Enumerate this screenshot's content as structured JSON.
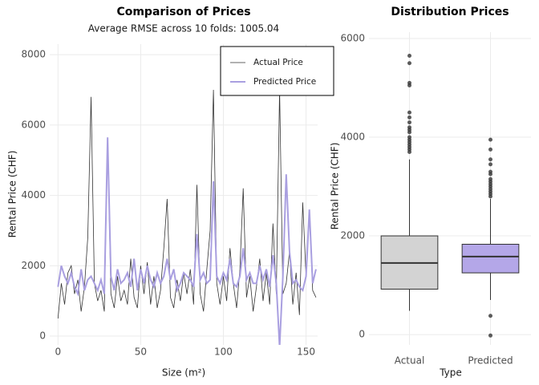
{
  "chart_data": [
    {
      "type": "line",
      "title": "Comparison of Prices",
      "subtitle": "Average RMSE across 10 folds: 1005.04",
      "x_label": "Size (m²)",
      "y_label": "Rental Price (CHF)",
      "x": [
        0,
        2,
        4,
        6,
        8,
        10,
        12,
        14,
        16,
        18,
        20,
        22,
        24,
        26,
        28,
        30,
        32,
        34,
        36,
        38,
        40,
        42,
        44,
        46,
        48,
        50,
        52,
        54,
        56,
        58,
        60,
        62,
        64,
        66,
        68,
        70,
        72,
        74,
        76,
        78,
        80,
        82,
        84,
        86,
        88,
        90,
        92,
        94,
        96,
        98,
        100,
        102,
        104,
        106,
        108,
        110,
        112,
        114,
        116,
        118,
        120,
        122,
        124,
        126,
        128,
        130,
        132,
        134,
        136,
        138,
        140,
        142,
        144,
        146,
        148,
        150,
        152,
        154,
        156
      ],
      "series": [
        {
          "name": "Actual Price",
          "color": "#333333",
          "values": [
            500,
            1500,
            900,
            1800,
            2000,
            1200,
            1600,
            700,
            1400,
            2800,
            6800,
            1500,
            1000,
            1300,
            700,
            5600,
            1200,
            800,
            1700,
            1000,
            1300,
            900,
            2200,
            1100,
            800,
            2000,
            1200,
            2100,
            900,
            1700,
            800,
            1300,
            2500,
            3900,
            1100,
            800,
            1600,
            1000,
            1800,
            1200,
            1900,
            900,
            4300,
            1200,
            700,
            1900,
            3000,
            7000,
            1500,
            900,
            1700,
            1000,
            2500,
            1500,
            800,
            1900,
            4200,
            1100,
            1700,
            700,
            1400,
            2200,
            1000,
            1800,
            900,
            3200,
            1200,
            7000,
            1200,
            1500,
            2400,
            900,
            1800,
            600,
            3800,
            1700,
            3500,
            1300,
            1100
          ]
        },
        {
          "name": "Predicted Price",
          "color": "#a99fe0",
          "values": [
            1400,
            2000,
            1700,
            1500,
            1800,
            1400,
            1200,
            1900,
            1300,
            1600,
            1700,
            1500,
            1300,
            1600,
            1200,
            5650,
            1700,
            1300,
            1900,
            1500,
            1600,
            1800,
            1400,
            2200,
            1300,
            1900,
            1500,
            2000,
            1600,
            1400,
            1800,
            1500,
            1700,
            2200,
            1600,
            1900,
            1300,
            1500,
            1800,
            1700,
            1600,
            1400,
            2900,
            1600,
            1800,
            1500,
            1600,
            4400,
            1700,
            1500,
            1800,
            1600,
            2200,
            1500,
            1400,
            1700,
            2500,
            1600,
            1800,
            1500,
            1500,
            2000,
            1600,
            1900,
            1400,
            2300,
            1500,
            -300,
            1700,
            4600,
            2400,
            1500,
            1600,
            1400,
            1300,
            1700,
            3600,
            1500,
            1900
          ]
        }
      ],
      "xlim": [
        -5,
        157
      ],
      "xticks": [
        0,
        50,
        100,
        150
      ],
      "ylim": [
        -250,
        8300
      ],
      "yticks": [
        0,
        2000,
        4000,
        6000,
        8000
      ],
      "grid": true,
      "legend": "top-right"
    },
    {
      "type": "box",
      "title": "Distribution Prices",
      "x_label": "Type",
      "y_label": "Rental Price (CHF)",
      "categories": [
        "Actual",
        "Predicted"
      ],
      "boxes": [
        {
          "color": "#d3d3d3",
          "whisker_low": 480,
          "q1": 920,
          "median": 1450,
          "q3": 2000,
          "whisker_high": 3550,
          "outliers": [
            3700,
            3750,
            3800,
            3850,
            3900,
            3950,
            4000,
            4100,
            4150,
            4200,
            4300,
            4400,
            4500,
            5050,
            5100,
            5500,
            5650
          ]
        },
        {
          "color": "#b4a7e8",
          "whisker_low": 700,
          "q1": 1250,
          "median": 1580,
          "q3": 1830,
          "whisker_high": 2750,
          "outliers": [
            -20,
            380,
            2800,
            2850,
            2900,
            2950,
            3000,
            3050,
            3100,
            3150,
            3250,
            3300,
            3450,
            3550,
            3750,
            3950
          ]
        }
      ],
      "ylim": [
        -210,
        6130
      ],
      "yticks": [
        0,
        2000,
        4000,
        6000
      ],
      "grid": true
    }
  ]
}
